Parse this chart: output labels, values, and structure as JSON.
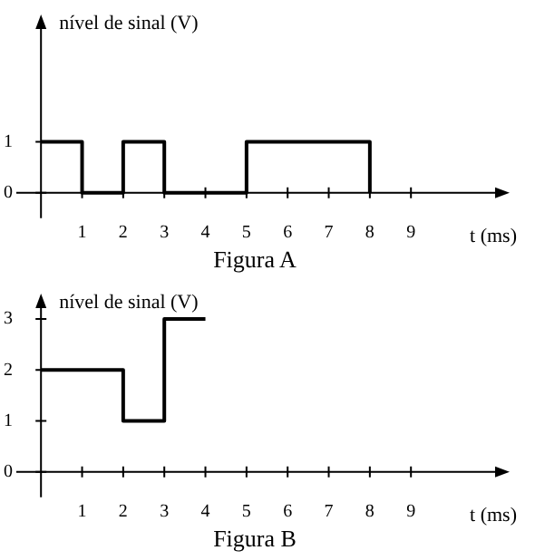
{
  "chart_data": [
    {
      "type": "step",
      "title": "Figura A",
      "xlabel": "t (ms)",
      "ylabel": "nível de sinal (V)",
      "x": [
        0,
        1,
        2,
        3,
        5,
        8
      ],
      "values": [
        1,
        0,
        1,
        0,
        1,
        0
      ],
      "color": "#000000",
      "xlim": [
        -0.6,
        11.4
      ],
      "xticks": [
        1,
        2,
        3,
        4,
        5,
        6,
        7,
        8,
        9
      ],
      "ylim": [
        -0.5,
        3.5
      ],
      "yticks": [
        0,
        1
      ],
      "grid": false,
      "legend": false
    },
    {
      "type": "step",
      "title": "Figura B",
      "xlabel": "t (ms)",
      "ylabel": "nível de sinal (V)",
      "x": [
        0,
        2,
        3,
        4
      ],
      "values": [
        2,
        1,
        3,
        3
      ],
      "color": "#000000",
      "xlim": [
        -0.6,
        11.4
      ],
      "xticks": [
        1,
        2,
        3,
        4,
        5,
        6,
        7,
        8,
        9
      ],
      "ylim": [
        -0.5,
        3.5
      ],
      "yticks": [
        0,
        1,
        2,
        3
      ],
      "grid": false,
      "legend": false
    }
  ]
}
